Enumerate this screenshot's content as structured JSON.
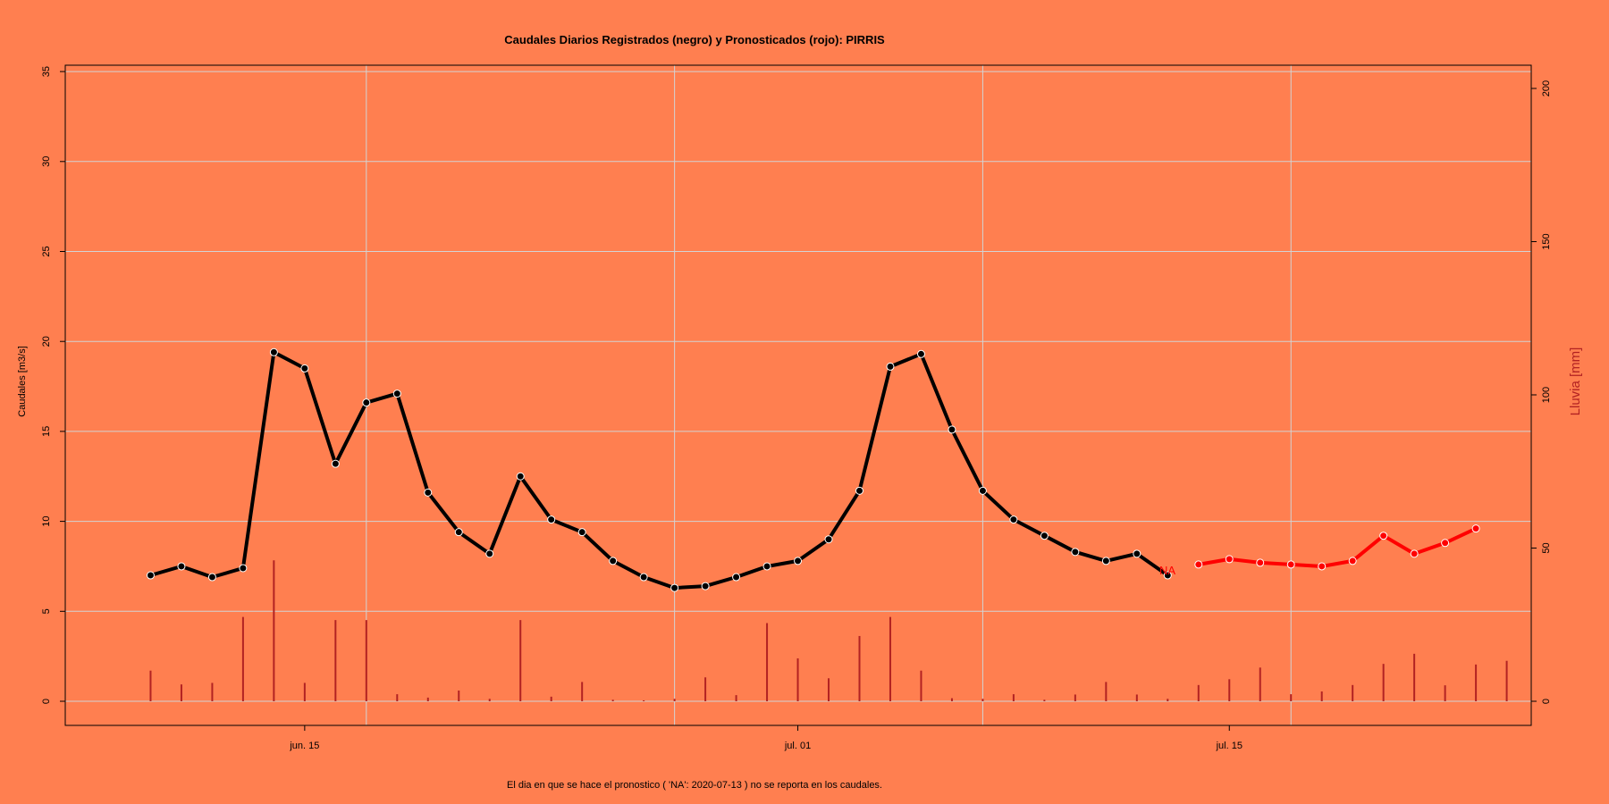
{
  "chart_data": {
    "type": "line",
    "title": "Caudales Diarios Registrados (negro) y Pronosticados (rojo): PIRRIS",
    "ylabel": "Caudales [m3/s]",
    "y2label": "Lluvia [mm]",
    "footnote": "El dia en que se hace el pronostico ( 'NA':  2020-07-13 ) no se reporta en los caudales.",
    "na_label": "NA",
    "ylim": [
      -1.4,
      35.4
    ],
    "y2lim": [
      0,
      200
    ],
    "yticks": [
      "0",
      "5",
      "10",
      "15",
      "20",
      "25",
      "30",
      "35"
    ],
    "y2ticks": [
      "0",
      "50",
      "100",
      "150",
      "200"
    ],
    "xticks": [
      {
        "date": "2020-06-15",
        "label": "jun. 15"
      },
      {
        "date": "2020-07-01",
        "label": "jul. 01"
      },
      {
        "date": "2020-07-15",
        "label": "jul. 15"
      }
    ],
    "xgrid_dates": [
      "2020-06-17",
      "2020-06-27",
      "2020-07-07",
      "2020-07-17"
    ],
    "xlim": [
      "2020-06-08",
      "2020-07-24"
    ],
    "grid": true,
    "colors": {
      "observed": "#000000",
      "forecast": "#FF0000",
      "rain": "#B22222",
      "background": "#FF7F50",
      "grid": "#D3D3D3"
    },
    "series": [
      {
        "name": "registrados (negro)",
        "dates": [
          "2020-06-10",
          "2020-06-11",
          "2020-06-12",
          "2020-06-13",
          "2020-06-14",
          "2020-06-15",
          "2020-06-16",
          "2020-06-17",
          "2020-06-18",
          "2020-06-19",
          "2020-06-20",
          "2020-06-21",
          "2020-06-22",
          "2020-06-23",
          "2020-06-24",
          "2020-06-25",
          "2020-06-26",
          "2020-06-27",
          "2020-06-28",
          "2020-06-29",
          "2020-06-30",
          "2020-07-01",
          "2020-07-02",
          "2020-07-03",
          "2020-07-04",
          "2020-07-05",
          "2020-07-06",
          "2020-07-07",
          "2020-07-08",
          "2020-07-09",
          "2020-07-10",
          "2020-07-11",
          "2020-07-12"
        ],
        "values": [
          7.0,
          7.5,
          6.9,
          7.4,
          19.4,
          18.5,
          13.2,
          16.6,
          17.1,
          11.6,
          9.4,
          8.2,
          12.5,
          10.1,
          9.4,
          7.8,
          6.9,
          6.3,
          6.4,
          6.9,
          7.5,
          7.8,
          9.0,
          11.7,
          18.6,
          19.3,
          15.1,
          11.7,
          10.1,
          9.2,
          8.3,
          7.8,
          8.2
        ]
      },
      {
        "name": "pronosticados (rojo)",
        "dates": [
          "2020-07-14",
          "2020-07-15",
          "2020-07-16",
          "2020-07-17",
          "2020-07-18",
          "2020-07-19",
          "2020-07-20",
          "2020-07-21",
          "2020-07-22",
          "2020-07-23"
        ],
        "values": [
          7.6,
          7.9,
          7.7,
          7.6,
          7.5,
          7.8,
          9.2,
          8.2,
          8.8,
          9.6
        ]
      }
    ],
    "last_observed": {
      "date": "2020-07-13",
      "value": 7.0
    },
    "rain": {
      "name": "Lluvia",
      "dates": [
        "2020-06-10",
        "2020-06-11",
        "2020-06-12",
        "2020-06-13",
        "2020-06-14",
        "2020-06-15",
        "2020-06-16",
        "2020-06-17",
        "2020-06-18",
        "2020-06-19",
        "2020-06-20",
        "2020-06-21",
        "2020-06-22",
        "2020-06-23",
        "2020-06-24",
        "2020-06-25",
        "2020-06-26",
        "2020-06-27",
        "2020-06-28",
        "2020-06-29",
        "2020-06-30",
        "2020-07-01",
        "2020-07-02",
        "2020-07-03",
        "2020-07-04",
        "2020-07-05",
        "2020-07-06",
        "2020-07-07",
        "2020-07-08",
        "2020-07-09",
        "2020-07-10",
        "2020-07-11",
        "2020-07-12",
        "2020-07-13",
        "2020-07-14",
        "2020-07-15",
        "2020-07-16",
        "2020-07-17",
        "2020-07-18",
        "2020-07-19",
        "2020-07-20",
        "2020-07-21",
        "2020-07-22",
        "2020-07-23",
        "2020-07-24"
      ],
      "values": [
        10,
        5.5,
        6,
        27.5,
        46,
        6,
        26.5,
        26.5,
        2.3,
        1.2,
        3.5,
        0.8,
        26.5,
        1.5,
        6.3,
        0.5,
        0.3,
        0.8,
        7.8,
        2,
        25.5,
        14,
        7.5,
        21.3,
        27.5,
        10,
        1,
        0.8,
        2.3,
        0.5,
        2.2,
        6.3,
        2.2,
        0.8,
        5.3,
        7.2,
        11,
        2.3,
        3.2,
        5.3,
        12.2,
        15.5,
        5.2,
        12,
        13.2
      ]
    }
  }
}
